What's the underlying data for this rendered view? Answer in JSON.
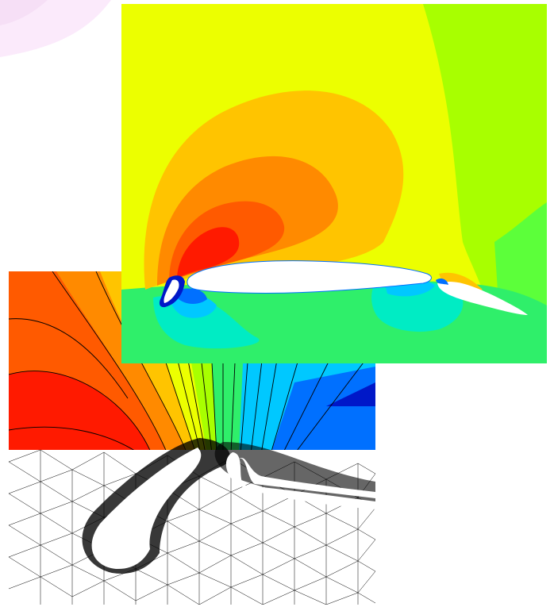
{
  "figure": {
    "panels": [
      {
        "id": "top-corner",
        "kind": "faint contour fragment"
      },
      {
        "id": "upper",
        "kind": "pressure contour over multi-element airfoil"
      },
      {
        "id": "lower",
        "kind": "contour lines over unstructured mesh near slat"
      }
    ],
    "colors": {
      "red": "#ff1a00",
      "orange_red": "#ff5a00",
      "orange": "#ff8a00",
      "amber": "#ffc400",
      "yellow": "#ecff00",
      "lime": "#a8ff00",
      "light_green": "#5cff3a",
      "green": "#2fef6a",
      "teal": "#00ecc4",
      "cyan": "#00c8ff",
      "blue": "#0070ff",
      "navy": "#0018c8"
    }
  }
}
